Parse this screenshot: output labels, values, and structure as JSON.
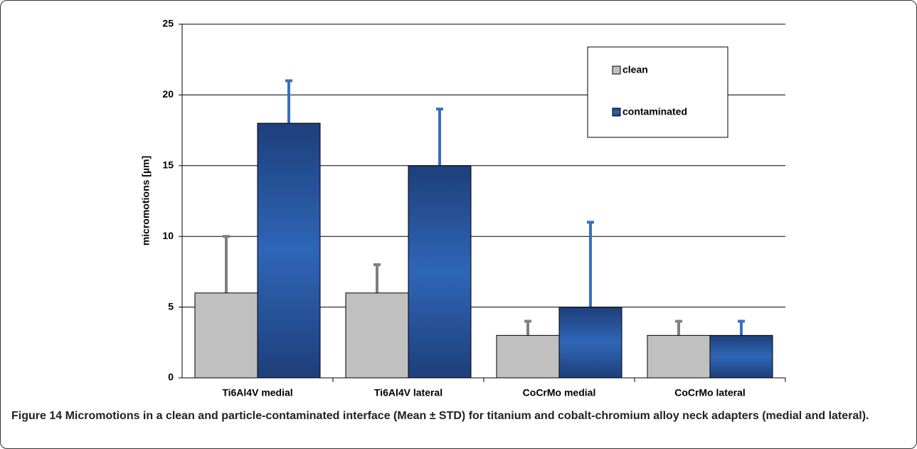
{
  "chart_data": {
    "type": "bar",
    "y_label": "micromotions [µm]",
    "categories": [
      "Ti6Al4V medial",
      "Ti6Al4V lateral",
      "CoCrMo medial",
      "CoCrMo lateral"
    ],
    "series": [
      {
        "name": "clean",
        "color": "#c0c0c0",
        "error_color": "#808080",
        "values": [
          6,
          6,
          3,
          3
        ],
        "errors": [
          4,
          2,
          1,
          1
        ]
      },
      {
        "name": "contaminated",
        "color": "#2a5caa",
        "error_color": "#3a6fc0",
        "values": [
          18,
          15,
          5,
          3
        ],
        "errors": [
          3,
          4,
          6,
          1
        ]
      }
    ],
    "ylim": [
      0,
      25
    ],
    "yticks": [
      0,
      5,
      10,
      15,
      20,
      25
    ],
    "grid": true,
    "legend": "upper-right"
  },
  "caption": {
    "label": "Figure 14",
    "text": "Micromotions in a clean and particle-contaminated interface (Mean ± STD) for titanium and cobalt-chromium alloy neck adapters (medial and lateral)."
  }
}
